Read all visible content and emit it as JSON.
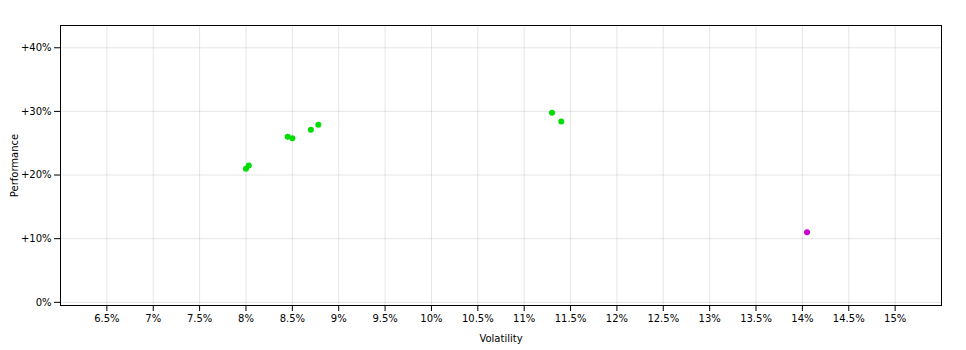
{
  "chart_data": {
    "type": "scatter",
    "xlabel": "Volatility",
    "ylabel": "Performance",
    "xlim": [
      0.06,
      0.155
    ],
    "ylim": [
      -0.005,
      0.435
    ],
    "xticks": [
      {
        "value": 0.065,
        "label": "6.5%"
      },
      {
        "value": 0.07,
        "label": "7%"
      },
      {
        "value": 0.075,
        "label": "7.5%"
      },
      {
        "value": 0.08,
        "label": "8%"
      },
      {
        "value": 0.085,
        "label": "8.5%"
      },
      {
        "value": 0.09,
        "label": "9%"
      },
      {
        "value": 0.095,
        "label": "9.5%"
      },
      {
        "value": 0.1,
        "label": "10%"
      },
      {
        "value": 0.105,
        "label": "10.5%"
      },
      {
        "value": 0.11,
        "label": "11%"
      },
      {
        "value": 0.115,
        "label": "11.5%"
      },
      {
        "value": 0.12,
        "label": "12%"
      },
      {
        "value": 0.125,
        "label": "12.5%"
      },
      {
        "value": 0.13,
        "label": "13%"
      },
      {
        "value": 0.135,
        "label": "13.5%"
      },
      {
        "value": 0.14,
        "label": "14%"
      },
      {
        "value": 0.145,
        "label": "14.5%"
      },
      {
        "value": 0.15,
        "label": "15%"
      }
    ],
    "yticks": [
      {
        "value": 0.0,
        "label": "0%"
      },
      {
        "value": 0.1,
        "label": "+10%"
      },
      {
        "value": 0.2,
        "label": "+20%"
      },
      {
        "value": 0.3,
        "label": "+30%"
      },
      {
        "value": 0.4,
        "label": "+40%"
      }
    ],
    "grid": true,
    "series": [
      {
        "color": "#00dd00",
        "x": [
          0.08,
          0.0803,
          0.0845,
          0.085,
          0.087,
          0.0878,
          0.113,
          0.114
        ],
        "values": [
          0.21,
          0.215,
          0.26,
          0.258,
          0.271,
          0.279,
          0.298,
          0.284
        ]
      },
      {
        "color": "#cc00cc",
        "x": [
          0.1405
        ],
        "values": [
          0.11
        ]
      }
    ]
  }
}
